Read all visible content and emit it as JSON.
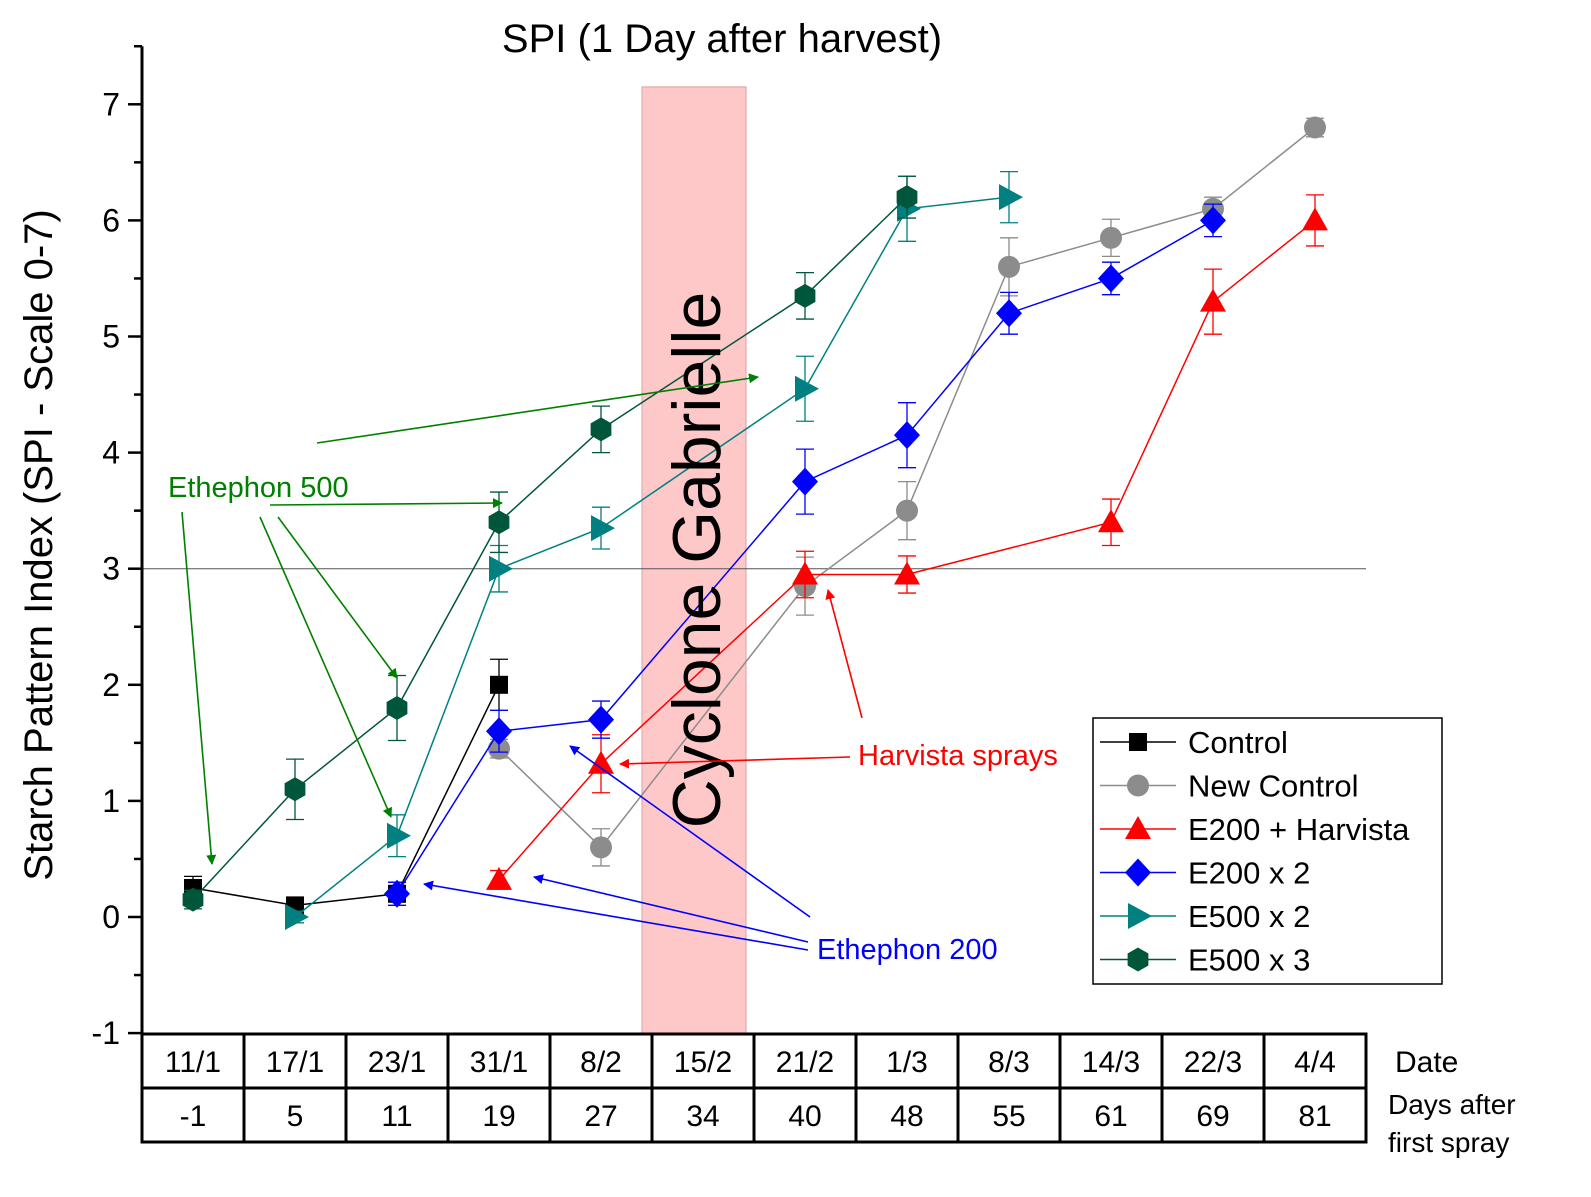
{
  "chart_data": {
    "type": "line",
    "title": "SPI (1 Day after harvest)",
    "ylabel": "Starch Pattern Index (SPI - Scale 0-7)",
    "ylim": [
      -1,
      7.5
    ],
    "yticks": [
      -1,
      0,
      1,
      2,
      3,
      4,
      5,
      6,
      7
    ],
    "reference_line": 3,
    "categories": [
      "11/1",
      "17/1",
      "23/1",
      "31/1",
      "8/2",
      "15/2",
      "21/2",
      "1/3",
      "8/3",
      "14/3",
      "22/3",
      "4/4"
    ],
    "days_after_first_spray": [
      "-1",
      "5",
      "11",
      "19",
      "27",
      "34",
      "40",
      "48",
      "55",
      "61",
      "69",
      "81"
    ],
    "row_labels": {
      "date": "Date",
      "days_line1": "Days after",
      "days_line2": "first spray"
    },
    "event_band": {
      "label": "Cyclone Gabrielle",
      "category": "15/2",
      "color": "#ffc8c8"
    },
    "legend_position": "bottom-right",
    "series": [
      {
        "name": "Control",
        "color": "#000000",
        "marker": "square",
        "values": [
          0.25,
          0.1,
          0.2,
          2.0,
          null,
          null,
          null,
          null,
          null,
          null,
          null,
          null
        ],
        "errors": [
          0.1,
          0.05,
          0.1,
          0.22,
          null,
          null,
          null,
          null,
          null,
          null,
          null,
          null
        ]
      },
      {
        "name": "New Control",
        "color": "#8c8c8c",
        "marker": "circle",
        "values": [
          null,
          null,
          null,
          1.45,
          0.6,
          null,
          2.85,
          3.5,
          5.6,
          5.85,
          6.1,
          6.8
        ],
        "errors": [
          null,
          null,
          null,
          0.08,
          0.16,
          null,
          0.25,
          0.25,
          0.25,
          0.16,
          0.1,
          0.08
        ]
      },
      {
        "name": "E200 + Harvista",
        "color": "#ff0000",
        "marker": "triangle-up",
        "values": [
          null,
          null,
          null,
          0.32,
          1.32,
          null,
          2.95,
          2.95,
          null,
          3.4,
          5.3,
          6.0
        ],
        "errors": [
          null,
          null,
          null,
          0.08,
          0.25,
          null,
          0.2,
          0.16,
          null,
          0.2,
          0.28,
          0.22
        ]
      },
      {
        "name": "E200 x 2",
        "color": "#0000ff",
        "marker": "diamond",
        "values": [
          null,
          null,
          0.2,
          1.6,
          1.7,
          null,
          3.75,
          4.15,
          5.2,
          5.5,
          6.0,
          null
        ],
        "errors": [
          null,
          null,
          0.1,
          0.18,
          0.16,
          null,
          0.28,
          0.28,
          0.18,
          0.14,
          0.14,
          null
        ]
      },
      {
        "name": "E500 x 2",
        "color": "#008080",
        "marker": "triangle-right",
        "values": [
          null,
          0.0,
          0.7,
          3.0,
          3.35,
          null,
          4.55,
          6.1,
          6.2,
          null,
          null,
          null
        ],
        "errors": [
          null,
          0.05,
          0.18,
          0.2,
          0.18,
          null,
          0.28,
          0.28,
          0.22,
          null,
          null,
          null
        ]
      },
      {
        "name": "E500 x 3",
        "color": "#00563b",
        "marker": "hexagon",
        "values": [
          0.15,
          1.1,
          1.8,
          3.4,
          4.2,
          null,
          5.35,
          6.2,
          null,
          null,
          null,
          null
        ],
        "errors": [
          0.08,
          0.26,
          0.28,
          0.26,
          0.2,
          null,
          0.2,
          0.18,
          null,
          null,
          null,
          null
        ]
      }
    ],
    "annotations": [
      {
        "text": "Ethephon 500",
        "color": "#008000"
      },
      {
        "text": "Harvista sprays",
        "color": "#ff0000"
      },
      {
        "text": "Ethephon 200",
        "color": "#0000ff"
      }
    ]
  }
}
